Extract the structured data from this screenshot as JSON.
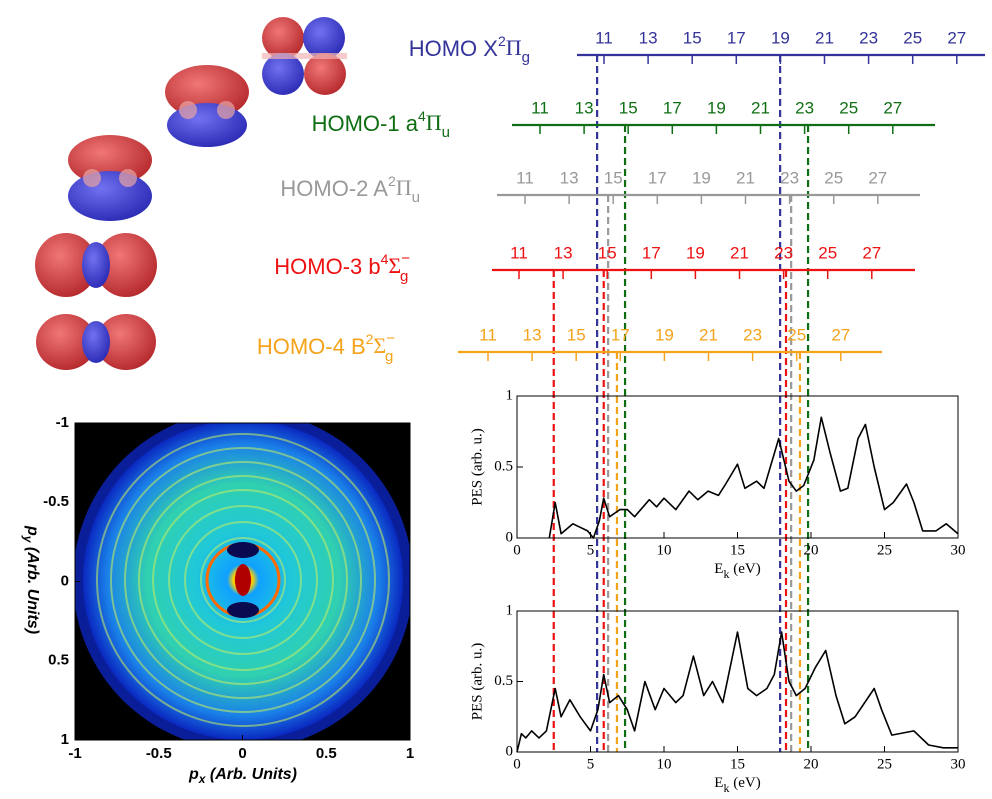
{
  "harmonic_scales": [
    {
      "label": {
        "main": "HOMO X",
        "sup": "2",
        "symbol": "Π",
        "sub": "g"
      },
      "color": "#333399",
      "ticks": [
        11,
        13,
        15,
        17,
        19,
        21,
        23,
        25,
        27
      ],
      "cutoffs": [
        5.45,
        17.9
      ]
    },
    {
      "label": {
        "main": "HOMO-1 a",
        "sup": "4",
        "symbol": "Π",
        "sub": "u"
      },
      "color": "#0f6e14",
      "ticks": [
        11,
        13,
        15,
        17,
        19,
        21,
        23,
        25,
        27
      ],
      "cutoffs": [
        7.35,
        19.8
      ]
    },
    {
      "label": {
        "main": "HOMO-2 A",
        "sup": "2",
        "symbol": "Π",
        "sub": "u"
      },
      "color": "#999999",
      "ticks": [
        11,
        13,
        15,
        17,
        19,
        21,
        23,
        25,
        27
      ],
      "cutoffs": [
        6.2,
        18.65
      ]
    },
    {
      "label": {
        "main": "HOMO-3 b",
        "sup": "4",
        "symbol": "Σ",
        "symbol_sup": "−",
        "sub": "g"
      },
      "color": "#ee1111",
      "ticks": [
        11,
        13,
        15,
        17,
        19,
        21,
        23,
        25,
        27
      ],
      "cutoffs": [
        2.5,
        5.9,
        18.3
      ]
    },
    {
      "label": {
        "main": "HOMO-4 B",
        "sup": "2",
        "symbol": "Σ",
        "symbol_sup": "−",
        "sub": "g"
      },
      "color": "#f5a31a",
      "ticks": [
        11,
        13,
        15,
        17,
        19,
        21,
        23,
        25,
        27
      ],
      "cutoffs": [
        6.8,
        19.25
      ]
    }
  ],
  "chart_data": [
    {
      "type": "image",
      "xlabel": {
        "main": "p",
        "sub": "x",
        "rest": " (Arb. Units)"
      },
      "ylabel": {
        "main": "p",
        "sub": "y",
        "rest": " (Arb. Units)"
      },
      "xlim": [
        -1,
        1
      ],
      "ylim": [
        -1,
        1
      ],
      "y_inverted": true,
      "xticks": [
        -1,
        -0.5,
        0,
        0.5,
        1
      ],
      "yticks": [
        -1,
        -0.5,
        0,
        0.5,
        1
      ]
    },
    {
      "type": "line",
      "color": "#000000",
      "x": [
        2.2,
        2.6,
        3.0,
        3.8,
        4.8,
        5.2,
        5.6,
        5.9,
        6.3,
        7.0,
        7.5,
        8.0,
        9.0,
        9.5,
        10.0,
        10.8,
        11.7,
        12.3,
        13.0,
        13.7,
        14.2,
        15.0,
        15.5,
        16.3,
        16.8,
        17.8,
        18.5,
        19.0,
        19.5,
        20.2,
        20.7,
        21.3,
        22.0,
        22.5,
        23.2,
        23.7,
        24.3,
        25.0,
        25.6,
        26.5,
        27.0,
        27.6,
        28.5,
        29.2,
        30.0
      ],
      "values": [
        0.0,
        0.25,
        0.03,
        0.1,
        0.05,
        0.0,
        0.12,
        0.28,
        0.15,
        0.2,
        0.2,
        0.15,
        0.27,
        0.22,
        0.28,
        0.2,
        0.33,
        0.27,
        0.33,
        0.3,
        0.38,
        0.52,
        0.35,
        0.4,
        0.35,
        0.7,
        0.4,
        0.33,
        0.37,
        0.55,
        0.85,
        0.6,
        0.33,
        0.35,
        0.7,
        0.8,
        0.5,
        0.2,
        0.25,
        0.38,
        0.25,
        0.05,
        0.05,
        0.1,
        0.03
      ],
      "xlim": [
        0,
        30
      ],
      "ylim": [
        0,
        1
      ],
      "xticks": [
        0,
        5,
        10,
        15,
        20,
        25,
        30
      ],
      "yticks": [
        0,
        0.5,
        1
      ],
      "xlabel": {
        "main": "E",
        "sub": "k",
        "rest": " (eV)"
      },
      "ylabel": "PES (arb. u.)"
    },
    {
      "type": "line",
      "color": "#000000",
      "x": [
        0,
        0.3,
        0.6,
        1.0,
        1.5,
        2.0,
        2.6,
        3.0,
        3.6,
        4.3,
        5.0,
        5.5,
        5.9,
        6.3,
        6.9,
        7.5,
        8.0,
        8.7,
        9.4,
        10.0,
        10.8,
        11.3,
        12.0,
        12.7,
        13.3,
        14.0,
        15.0,
        15.7,
        16.3,
        17.0,
        17.5,
        18.0,
        18.5,
        19.0,
        19.6,
        20.3,
        21.0,
        21.7,
        22.3,
        23.0,
        24.3,
        24.8,
        25.5,
        27.0,
        28.0,
        29.0,
        30.0
      ],
      "values": [
        0.0,
        0.13,
        0.1,
        0.15,
        0.1,
        0.15,
        0.45,
        0.25,
        0.37,
        0.25,
        0.15,
        0.3,
        0.55,
        0.35,
        0.4,
        0.3,
        0.15,
        0.5,
        0.3,
        0.45,
        0.35,
        0.4,
        0.68,
        0.4,
        0.5,
        0.35,
        0.85,
        0.45,
        0.4,
        0.45,
        0.55,
        0.85,
        0.5,
        0.4,
        0.45,
        0.6,
        0.72,
        0.4,
        0.2,
        0.25,
        0.45,
        0.3,
        0.12,
        0.15,
        0.05,
        0.03,
        0.03
      ],
      "xlim": [
        0,
        30
      ],
      "ylim": [
        0,
        1
      ],
      "xticks": [
        0,
        5,
        10,
        15,
        20,
        25,
        30
      ],
      "yticks": [
        0,
        0.5,
        1
      ],
      "xlabel": {
        "main": "E",
        "sub": "k",
        "rest": " (eV)"
      },
      "ylabel": "PES (arb. u.)"
    }
  ]
}
